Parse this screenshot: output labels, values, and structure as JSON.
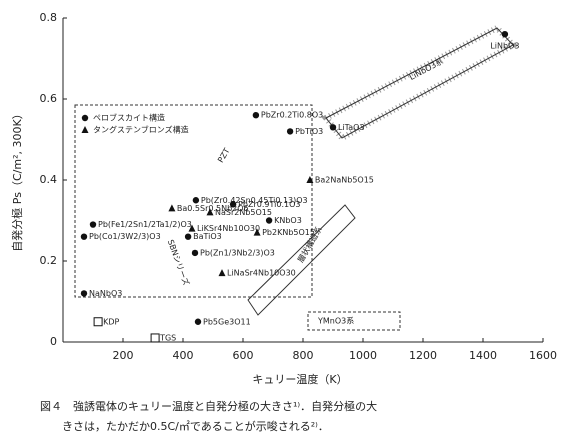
{
  "chart_data": {
    "type": "scatter",
    "x_label": "キュリー温度（K）",
    "y_label": "自発分極 Ps（C/m², 300K）",
    "xlim": [
      0,
      1600
    ],
    "xticks": [
      200,
      400,
      600,
      800,
      1000,
      1200,
      1400,
      1600
    ],
    "ylim": [
      0,
      0.8
    ],
    "yticks": [
      0,
      0.2,
      0.4,
      0.6,
      0.8
    ],
    "series": [
      {
        "name": "ペロブスカイト構造",
        "marker": "circle",
        "x": [
          70,
          70,
          100,
          443,
          567,
          417,
          440,
          687,
          757,
          643,
          900,
          1473,
          450
        ],
        "values": [
          0.12,
          0.26,
          0.29,
          0.35,
          0.34,
          0.26,
          0.22,
          0.3,
          0.52,
          0.56,
          0.53,
          0.76,
          0.05
        ],
        "labels": [
          "NaNbO3",
          "Pb(Co1/3W2/3)O3",
          "Pb(Fe1/2Sn1/2Ta1/2)O3",
          "Pb(Zr0.42Sn0.45Ti0.13)O3",
          "PbZr0.9Ti0.1O3",
          "BaTiO3",
          "Pb(Zn1/3Nb2/3)O3",
          "KNbO3",
          "PbTiO3",
          "PbZr0.2Ti0.8O3",
          "LiTaO3",
          "LiNbO3",
          "Pb5Ge3O11"
        ]
      },
      {
        "name": "タングステンブロンズ構造",
        "marker": "triangle",
        "x": [
          823,
          363,
          490,
          430,
          530,
          647
        ],
        "values": [
          0.4,
          0.33,
          0.32,
          0.28,
          0.17,
          0.27
        ],
        "labels": [
          "Ba2NaNb5O15",
          "Ba0.5Sr0.5Nb2O6",
          "NaSr2Nb5O15",
          "LiKSr4Nb10O30",
          "LiNaSr4Nb10O30",
          "Pb2KNb5O15"
        ]
      },
      {
        "marker": "square",
        "x": [
          117,
          307
        ],
        "values": [
          0.05,
          0.01
        ],
        "labels": [
          "KDP",
          "TGS"
        ]
      }
    ],
    "annotations": [
      "PZT",
      "SBNシリーズ",
      "LiNbO3系",
      "層状構造系",
      "YMnO3系"
    ],
    "caption": [
      "図４　強誘電体のキュリー温度と自発分極の大きさ¹⁾．自発分極の大",
      "きさは，たかだか0.5C/㎡であることが示唆される²⁾．"
    ]
  }
}
